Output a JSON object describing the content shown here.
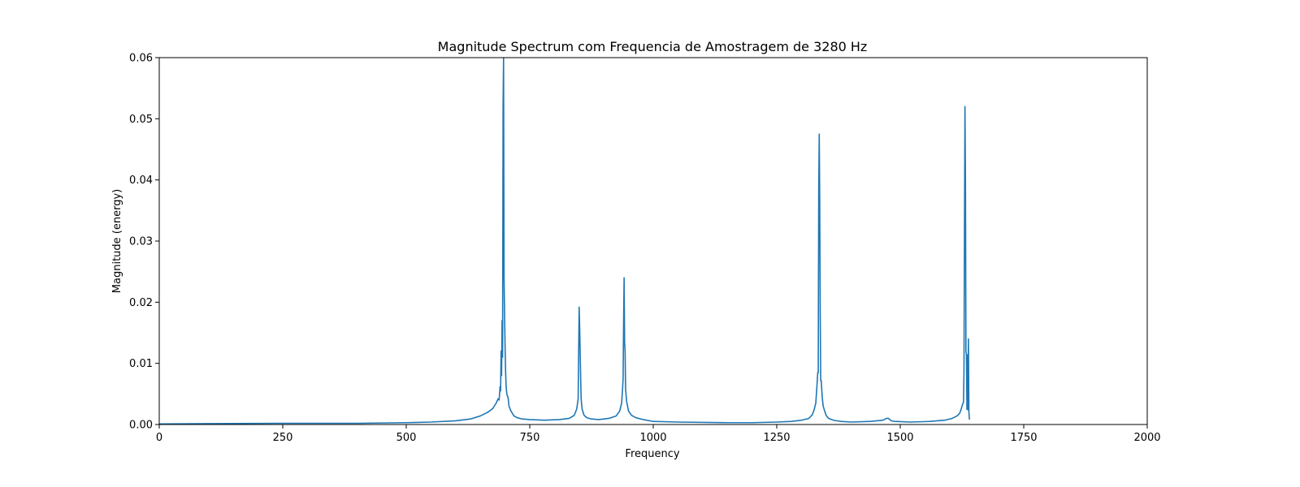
{
  "chart_data": {
    "type": "line",
    "title": "Magnitude Spectrum com Frequencia de Amostragem de 3280 Hz",
    "xlabel": "Frequency",
    "ylabel": "Magnitude (energy)",
    "xlim": [
      0,
      2000
    ],
    "ylim": [
      0,
      0.06
    ],
    "x_ticks": [
      0,
      250,
      500,
      750,
      1000,
      1250,
      1500,
      1750,
      2000
    ],
    "x_tick_labels": [
      "0",
      "250",
      "500",
      "750",
      "1000",
      "1250",
      "1500",
      "1750",
      "2000"
    ],
    "y_ticks": [
      0,
      0.01,
      0.02,
      0.03,
      0.04,
      0.05,
      0.06
    ],
    "y_tick_labels": [
      "0.00",
      "0.01",
      "0.02",
      "0.03",
      "0.04",
      "0.05",
      "0.06"
    ],
    "grid": false,
    "line_color": "#1f77b4",
    "series": [
      {
        "x": [
          0,
          250,
          400,
          500,
          550,
          600,
          630,
          650,
          665,
          675,
          682,
          686,
          688,
          690,
          691,
          692,
          693,
          694,
          695,
          696,
          697,
          698,
          699,
          700,
          701,
          702,
          703,
          704,
          706,
          708,
          712,
          718,
          725,
          735,
          750,
          780,
          810,
          830,
          840,
          845,
          848,
          850,
          851,
          852,
          853,
          854,
          856,
          860,
          866,
          875,
          890,
          910,
          925,
          932,
          936,
          938,
          939,
          940,
          941,
          942,
          943,
          944,
          946,
          950,
          956,
          965,
          980,
          1000,
          1050,
          1150,
          1200,
          1250,
          1280,
          1300,
          1315,
          1322,
          1326,
          1329,
          1331,
          1333,
          1334,
          1335,
          1336,
          1337,
          1338,
          1339,
          1340,
          1342,
          1344,
          1347,
          1350,
          1355,
          1365,
          1380,
          1400,
          1440,
          1465,
          1472,
          1476,
          1479,
          1482,
          1490,
          1520,
          1560,
          1590,
          1605,
          1615,
          1620,
          1623,
          1625,
          1627,
          1628,
          1629,
          1630,
          1631,
          1632,
          1633,
          1634,
          1635,
          1636,
          1637,
          1638,
          1639,
          1640
        ],
        "values": [
          0.0001,
          0.0002,
          0.0002,
          0.0003,
          0.0004,
          0.0006,
          0.0009,
          0.0014,
          0.002,
          0.0026,
          0.0035,
          0.0042,
          0.004,
          0.0062,
          0.0055,
          0.012,
          0.008,
          0.017,
          0.011,
          0.052,
          0.06,
          0.024,
          0.018,
          0.013,
          0.009,
          0.0065,
          0.0055,
          0.0048,
          0.0045,
          0.003,
          0.0022,
          0.0014,
          0.0011,
          0.0009,
          0.0008,
          0.0007,
          0.0008,
          0.001,
          0.0015,
          0.0025,
          0.0042,
          0.0192,
          0.016,
          0.012,
          0.008,
          0.0042,
          0.0025,
          0.0015,
          0.0011,
          0.0009,
          0.0008,
          0.001,
          0.0014,
          0.0022,
          0.0035,
          0.006,
          0.0075,
          0.0165,
          0.024,
          0.0135,
          0.012,
          0.0058,
          0.0038,
          0.0022,
          0.0015,
          0.0011,
          0.0008,
          0.0005,
          0.0004,
          0.0003,
          0.0003,
          0.0004,
          0.0005,
          0.0007,
          0.001,
          0.0016,
          0.0025,
          0.0035,
          0.0058,
          0.0085,
          0.0085,
          0.0385,
          0.0475,
          0.036,
          0.018,
          0.0072,
          0.0072,
          0.0045,
          0.003,
          0.0022,
          0.0015,
          0.001,
          0.0007,
          0.0005,
          0.0004,
          0.0005,
          0.0007,
          0.001,
          0.001,
          0.0008,
          0.0006,
          0.0005,
          0.0004,
          0.0005,
          0.0007,
          0.001,
          0.0014,
          0.0018,
          0.0024,
          0.003,
          0.0035,
          0.0036,
          0.0085,
          0.032,
          0.052,
          0.04,
          0.012,
          0.0114,
          0.0025,
          0.0114,
          0.0024,
          0.014,
          0.002,
          0.0008
        ]
      }
    ]
  }
}
